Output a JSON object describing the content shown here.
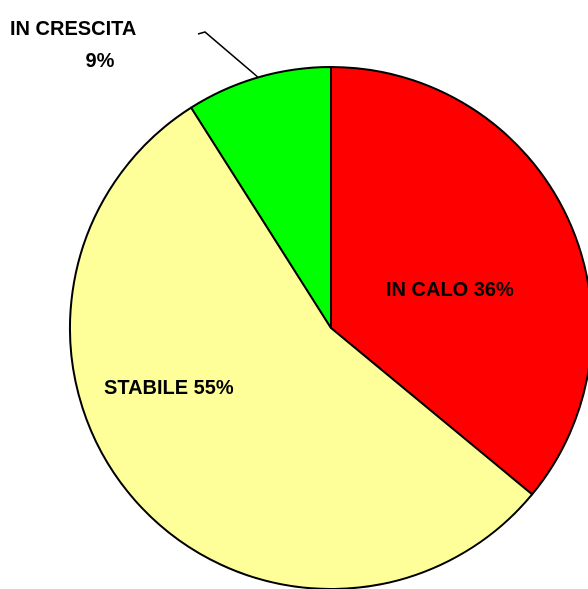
{
  "chart_data": {
    "type": "pie",
    "start_angle_deg": 0,
    "direction": "clockwise",
    "outline_color": "#000000",
    "slices": [
      {
        "label": "IN CALO",
        "value": 36,
        "display": "IN CALO  36%",
        "color": "#ff0000"
      },
      {
        "label": "STABILE",
        "value": 55,
        "display": "STABILE 55%",
        "color": "#ffff99"
      },
      {
        "label": "IN CRESCITA",
        "value": 9,
        "display_line1": "IN CRESCITA",
        "display_line2": "9%",
        "color": "#00ff00"
      }
    ]
  }
}
